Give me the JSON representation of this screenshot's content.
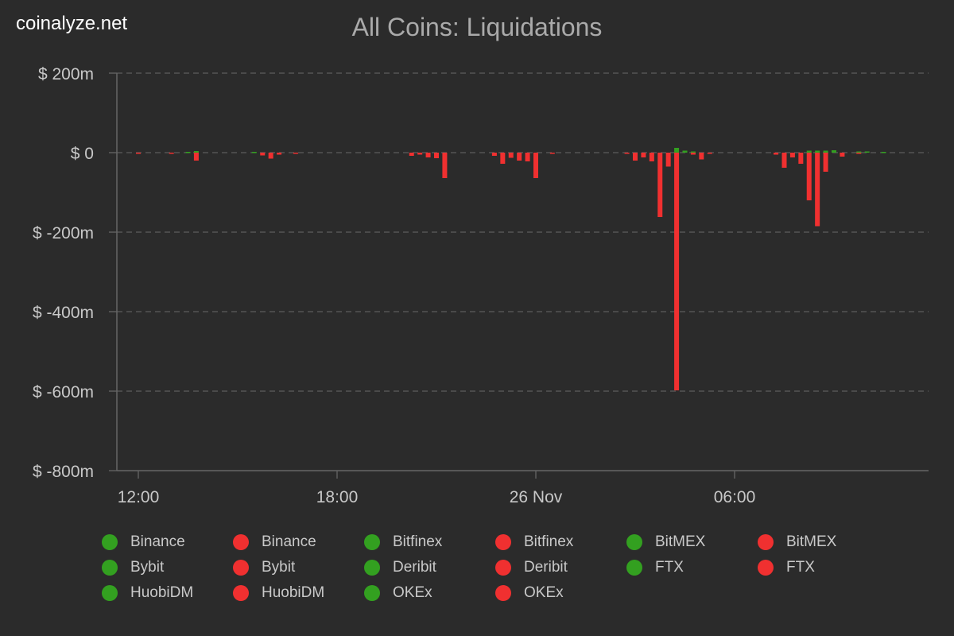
{
  "brand": "coinalyze.net",
  "colors": {
    "background": "#2b2b2b",
    "long": "#33a020",
    "short": "#f03030",
    "grid": "#5c5c5c",
    "axis_text": "#c8c8c8",
    "title": "#aaaaaa"
  },
  "chart_data": {
    "type": "bar",
    "title": "All Coins: Liquidations",
    "xlabel": "",
    "ylabel": "",
    "ylim": [
      -800,
      200
    ],
    "y_unit": "$ millions",
    "y_ticks": [
      {
        "value": 200,
        "label": "$ 200m"
      },
      {
        "value": 0,
        "label": "$ 0"
      },
      {
        "value": -200,
        "label": "$ -200m"
      },
      {
        "value": -400,
        "label": "$ -400m"
      },
      {
        "value": -600,
        "label": "$ -600m"
      },
      {
        "value": -800,
        "label": "$ -800m"
      }
    ],
    "x_range_hours": [
      11,
      31.7
    ],
    "x_ticks": [
      {
        "hour": 12,
        "label": "12:00"
      },
      {
        "hour": 18,
        "label": "18:00"
      },
      {
        "hour": 24,
        "label": "26 Nov"
      },
      {
        "hour": 30,
        "label": "06:00"
      }
    ],
    "grid": "horizontal-dashed",
    "legend_position": "bottom",
    "legend": [
      {
        "label": "Binance",
        "color": "#33a020"
      },
      {
        "label": "Binance",
        "color": "#f03030"
      },
      {
        "label": "Bitfinex",
        "color": "#33a020"
      },
      {
        "label": "Bitfinex",
        "color": "#f03030"
      },
      {
        "label": "BitMEX",
        "color": "#33a020"
      },
      {
        "label": "BitMEX",
        "color": "#f03030"
      },
      {
        "label": "Bybit",
        "color": "#33a020"
      },
      {
        "label": "Bybit",
        "color": "#f03030"
      },
      {
        "label": "Deribit",
        "color": "#33a020"
      },
      {
        "label": "Deribit",
        "color": "#f03030"
      },
      {
        "label": "FTX",
        "color": "#33a020"
      },
      {
        "label": "FTX",
        "color": "#f03030"
      },
      {
        "label": "HuobiDM",
        "color": "#33a020"
      },
      {
        "label": "HuobiDM",
        "color": "#f03030"
      },
      {
        "label": "OKEx",
        "color": "#33a020"
      },
      {
        "label": "OKEx",
        "color": "#f03030"
      }
    ],
    "long_liquidations": [
      {
        "hour": 12.0,
        "value": -3
      },
      {
        "hour": 13.0,
        "value": -3
      },
      {
        "hour": 13.75,
        "value": -20
      },
      {
        "hour": 15.75,
        "value": -7
      },
      {
        "hour": 16.0,
        "value": -15
      },
      {
        "hour": 16.25,
        "value": -5
      },
      {
        "hour": 16.75,
        "value": -2
      },
      {
        "hour": 20.25,
        "value": -8
      },
      {
        "hour": 20.5,
        "value": -5
      },
      {
        "hour": 20.75,
        "value": -12
      },
      {
        "hour": 21.0,
        "value": -14
      },
      {
        "hour": 21.25,
        "value": -64
      },
      {
        "hour": 22.75,
        "value": -8
      },
      {
        "hour": 23.0,
        "value": -28
      },
      {
        "hour": 23.25,
        "value": -13
      },
      {
        "hour": 23.5,
        "value": -20
      },
      {
        "hour": 23.75,
        "value": -22
      },
      {
        "hour": 24.0,
        "value": -64
      },
      {
        "hour": 24.5,
        "value": -3
      },
      {
        "hour": 26.75,
        "value": -3
      },
      {
        "hour": 27.0,
        "value": -20
      },
      {
        "hour": 27.25,
        "value": -12
      },
      {
        "hour": 27.5,
        "value": -22
      },
      {
        "hour": 27.75,
        "value": -162
      },
      {
        "hour": 28.0,
        "value": -35
      },
      {
        "hour": 28.25,
        "value": -598
      },
      {
        "hour": 28.75,
        "value": -5
      },
      {
        "hour": 29.0,
        "value": -17
      },
      {
        "hour": 29.25,
        "value": -3
      },
      {
        "hour": 31.25,
        "value": -5
      },
      {
        "hour": 31.5,
        "value": -38
      },
      {
        "hour": 31.75,
        "value": -12
      },
      {
        "hour": 32.0,
        "value": -28
      },
      {
        "hour": 32.25,
        "value": -120
      },
      {
        "hour": 32.5,
        "value": -185
      },
      {
        "hour": 32.75,
        "value": -48
      },
      {
        "hour": 33.25,
        "value": -10
      },
      {
        "hour": 33.75,
        "value": -3
      }
    ],
    "short_liquidations": [
      {
        "hour": 13.5,
        "value": 2
      },
      {
        "hour": 13.75,
        "value": 4
      },
      {
        "hour": 15.5,
        "value": 2
      },
      {
        "hour": 28.25,
        "value": 12
      },
      {
        "hour": 28.5,
        "value": 5
      },
      {
        "hour": 28.75,
        "value": 3
      },
      {
        "hour": 32.25,
        "value": 5
      },
      {
        "hour": 32.5,
        "value": 5
      },
      {
        "hour": 32.75,
        "value": 5
      },
      {
        "hour": 33.0,
        "value": 6
      },
      {
        "hour": 33.75,
        "value": 3
      },
      {
        "hour": 34.0,
        "value": 3
      },
      {
        "hour": 34.5,
        "value": 2
      }
    ]
  }
}
